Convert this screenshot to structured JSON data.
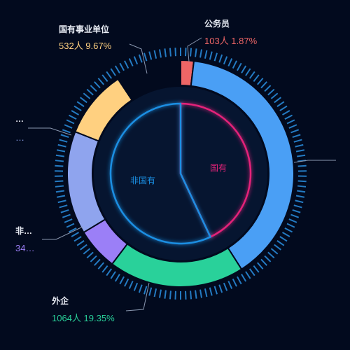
{
  "chart_data": [
    {
      "type": "pie",
      "variant": "donut",
      "title": "",
      "slices": [
        {
          "label": "公务员",
          "label_display": "公务员",
          "value_text": "103人  1.87%",
          "percent": 1.87,
          "color": "#ee6666"
        },
        {
          "label": "",
          "label_display": "",
          "value_text": "",
          "percent": 39.1,
          "color": "#4a9ff5"
        },
        {
          "label": "外企",
          "label_display": "外企",
          "value_text": "1064人  19.35%",
          "percent": 19.35,
          "color": "#29d19a"
        },
        {
          "label": "非…",
          "label_display": "非…",
          "value_text": "34…",
          "percent": 6.0,
          "color": "#9b7ff7"
        },
        {
          "label": "…",
          "label_display": "…",
          "value_text": "…",
          "percent": 14.7,
          "color": "#8fa4ee"
        },
        {
          "label": "国有事业单位",
          "label_display": "国有事业单位",
          "value_text": "532人  9.67%",
          "percent": 9.67,
          "color": "#ffd080"
        }
      ]
    },
    {
      "type": "pie",
      "variant": "outline-pie",
      "slices": [
        {
          "label": "国有",
          "percent": 43.0,
          "color": "#e5227a"
        },
        {
          "label": "非国有",
          "percent": 57.0,
          "color": "#1a8fe3"
        }
      ]
    }
  ]
}
